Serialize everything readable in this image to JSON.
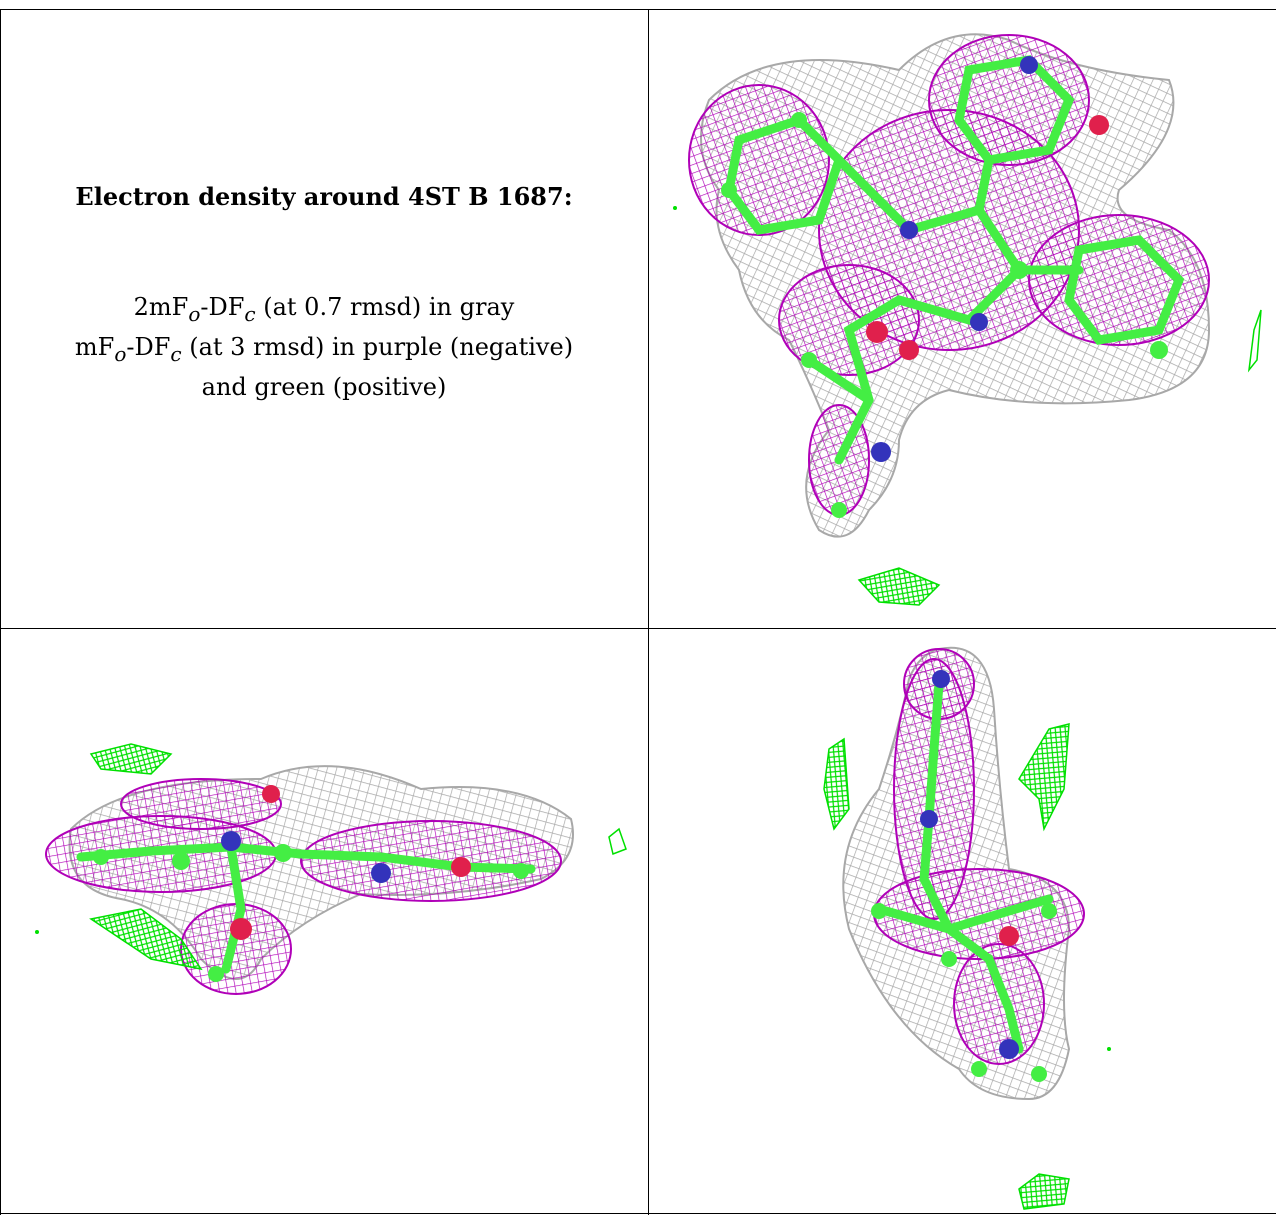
{
  "caption": {
    "title": "Electron density around 4ST B 1687:",
    "line1_a": "2mF",
    "line1_sub1": "o",
    "line1_b": "-DF",
    "line1_sub2": "c",
    "line1_c": " (at 0.7 rmsd) in gray",
    "line2_a": "mF",
    "line2_sub1": "o",
    "line2_b": "-DF",
    "line2_sub2": "c",
    "line2_c": " (at 3 rmsd) in purple (negative)",
    "line3": "and green (positive)"
  },
  "colors": {
    "map_2fofc": "#a8a8a8",
    "map_fofc_negative": "#b000b8",
    "map_fofc_positive": "#00e000",
    "carbon": "#44ee44",
    "nitrogen": "#3333bb",
    "oxygen": "#e0204c",
    "border": "#000000"
  },
  "panels": [
    {
      "view": "top-right"
    },
    {
      "view": "bottom-left"
    },
    {
      "view": "bottom-right"
    }
  ]
}
